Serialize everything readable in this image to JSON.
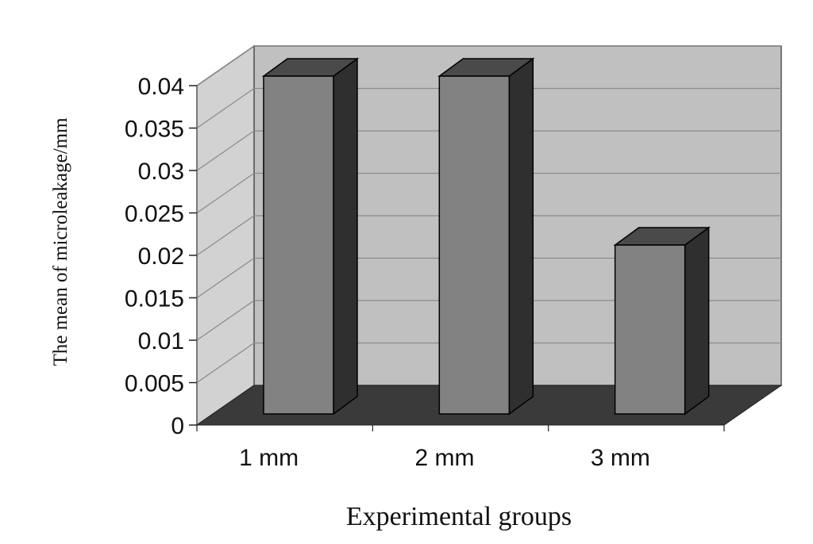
{
  "chart_data": {
    "type": "bar",
    "style": "3d",
    "categories": [
      "1 mm",
      "2 mm",
      "3 mm"
    ],
    "values": [
      0.04,
      0.04,
      0.02
    ],
    "title": "",
    "xlabel": "Experimental groups",
    "ylabel": "The mean of microleakage/mm",
    "ylim": [
      0,
      0.04
    ],
    "yticks": [
      "0",
      "0.005",
      "0.01",
      "0.015",
      "0.02",
      "0.025",
      "0.03",
      "0.035",
      "0.04"
    ],
    "grid": true,
    "legend": "none",
    "colors": {
      "bar_front": "#828282",
      "bar_side": "#2f2f2f",
      "bar_top": "#4a4a4a",
      "back_wall": "#c0c0c0",
      "side_wall": "#d2d2d2",
      "floor": "#3a3a3a",
      "gridline": "#8a8a8a"
    }
  }
}
